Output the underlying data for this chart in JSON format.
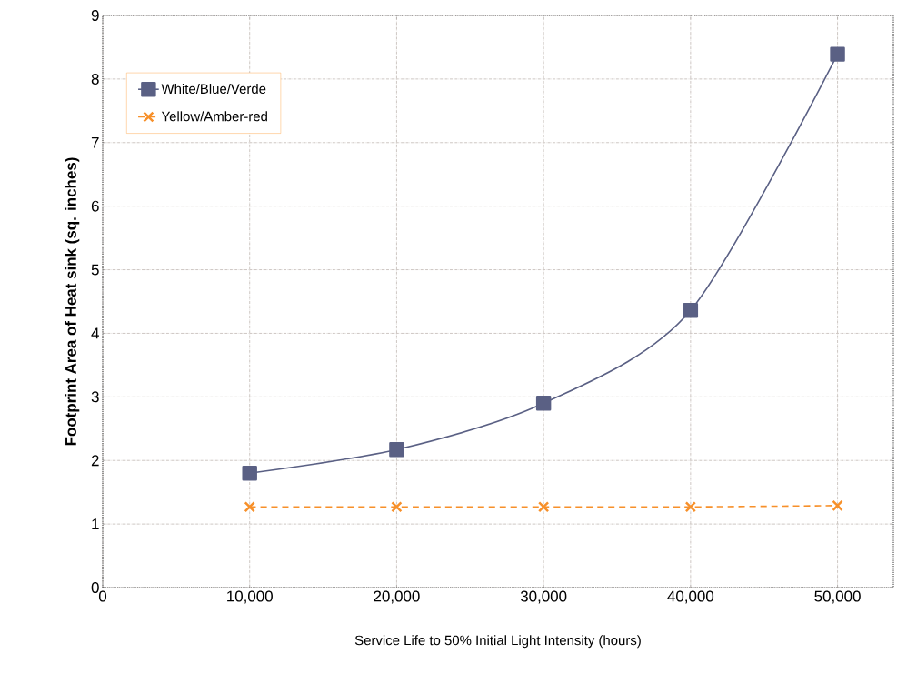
{
  "chart_data": {
    "type": "line",
    "xlabel": "Service Life to 50% Initial Light Intensity (hours)",
    "ylabel": "Footprint Area of Heat sink (sq. inches)",
    "x": [
      10000,
      20000,
      30000,
      40000,
      50000
    ],
    "series": [
      {
        "name": "White/Blue/Verde",
        "color": "#5a6084",
        "values": [
          1.8,
          2.17,
          2.9,
          4.36,
          8.39
        ],
        "marker": "square",
        "line_style": "solid"
      },
      {
        "name": "Yellow/Amber-red",
        "color": "#f7902a",
        "values": [
          1.27,
          1.27,
          1.27,
          1.27,
          1.29
        ],
        "marker": "cross",
        "line_style": "dashed"
      }
    ],
    "xlim": [
      0,
      53800
    ],
    "ylim": [
      0,
      9
    ],
    "xticks": [
      0,
      {
        "value": 10000,
        "label": "10,000"
      },
      {
        "value": 20000,
        "label": "20,000"
      },
      {
        "value": 30000,
        "label": "30,000"
      },
      {
        "value": 40000,
        "label": "40,000"
      },
      {
        "value": 50000,
        "label": "50,000"
      }
    ],
    "yticks": [
      0,
      1,
      2,
      3,
      4,
      5,
      6,
      7,
      8,
      9
    ],
    "grid": true,
    "legend": "top left"
  }
}
